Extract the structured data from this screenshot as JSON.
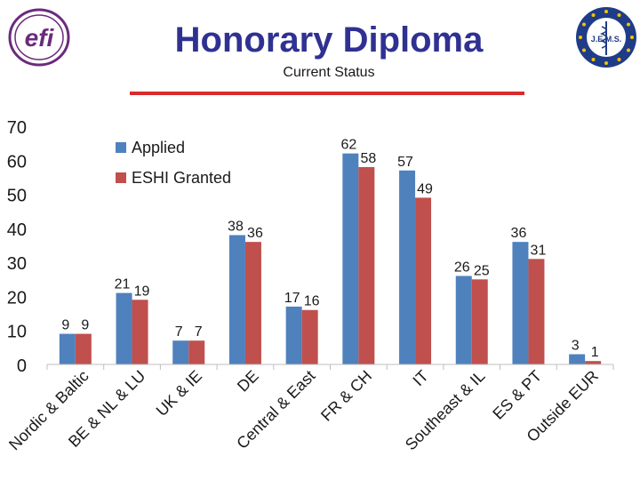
{
  "header": {
    "title": "Honorary Diploma",
    "subtitle": "Current Status",
    "left_logo_text": "efi",
    "right_logo_text": "J.E.M.S.",
    "colors": {
      "title": "#2f3192",
      "rule": "#d92b2b"
    }
  },
  "chart_data": {
    "type": "bar",
    "title": "",
    "xlabel": "",
    "ylabel": "",
    "ylim": [
      0,
      70
    ],
    "yticks": [
      0,
      10,
      20,
      30,
      40,
      50,
      60,
      70
    ],
    "grid": false,
    "legend_position": "top-left",
    "categories": [
      "Nordic & Baltic",
      "BE & NL & LU",
      "UK & IE",
      "DE",
      "Central & East",
      "FR & CH",
      "IT",
      "Southeast & IL",
      "ES & PT",
      "Outside EUR"
    ],
    "series": [
      {
        "name": "Applied",
        "color": "#4f81bd",
        "values": [
          9,
          21,
          7,
          38,
          17,
          62,
          57,
          26,
          36,
          3
        ]
      },
      {
        "name": "ESHI Granted",
        "color": "#c0504d",
        "values": [
          9,
          19,
          7,
          36,
          16,
          58,
          49,
          25,
          31,
          1
        ]
      }
    ]
  }
}
